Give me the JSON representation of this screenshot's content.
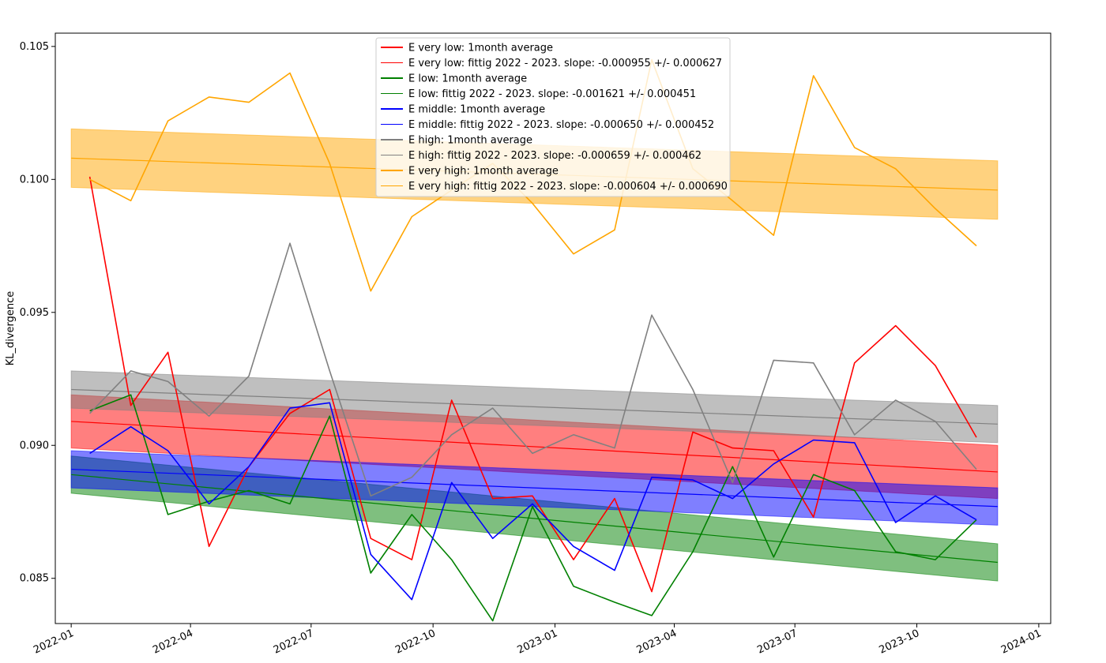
{
  "chart_data": {
    "type": "line",
    "title": "",
    "xlabel": "",
    "ylabel": "KL_divergence",
    "x_ticks": [
      "2022-01",
      "2022-04",
      "2022-07",
      "2022-10",
      "2023-01",
      "2023-04",
      "2023-07",
      "2023-10",
      "2024-01"
    ],
    "y_ticks": [
      "0.085",
      "0.090",
      "0.095",
      "0.100",
      "0.105"
    ],
    "ylim": [
      0.0833,
      0.1055
    ],
    "xlim": [
      "2021-12-20",
      "2024-01-10"
    ],
    "grid": false,
    "legend_position": "top-center",
    "x": [
      "2022-01-15",
      "2022-02-15",
      "2022-03-15",
      "2022-04-15",
      "2022-05-15",
      "2022-06-15",
      "2022-07-15",
      "2022-08-15",
      "2022-09-15",
      "2022-10-15",
      "2022-11-15",
      "2022-12-15",
      "2023-01-15",
      "2023-02-15",
      "2023-03-15",
      "2023-04-15",
      "2023-05-15",
      "2023-06-15",
      "2023-07-15",
      "2023-08-15",
      "2023-09-15",
      "2023-10-15",
      "2023-11-15"
    ],
    "series": [
      {
        "name": "E very low: 1month average",
        "color": "#ff0000",
        "values": [
          0.1001,
          0.0915,
          0.0935,
          0.0862,
          0.0892,
          0.0912,
          0.0921,
          0.0865,
          0.0857,
          0.0917,
          0.088,
          0.0881,
          0.0857,
          0.088,
          0.0845,
          0.0905,
          0.0899,
          0.0898,
          0.0873,
          0.0931,
          0.0945,
          0.093,
          0.0903
        ],
        "fit_name": "E very low: fittig 2022 - 2023. slope: -0.000955 +/- 0.000627",
        "fit": [
          0.0909,
          0.089
        ],
        "band_lower": [
          0.0899,
          0.088
        ],
        "band_upper": [
          0.0919,
          0.09
        ]
      },
      {
        "name": "E low: 1month average",
        "color": "#008000",
        "values": [
          0.0913,
          0.0919,
          0.0874,
          0.0879,
          0.0883,
          0.0878,
          0.0911,
          0.0852,
          0.0874,
          0.0857,
          0.0834,
          0.0877,
          0.0847,
          0.0841,
          0.0836,
          0.086,
          0.0892,
          0.0858,
          0.0889,
          0.0883,
          0.086,
          0.0857,
          0.0872
        ],
        "fit_name": "E low: fittig 2022 - 2023. slope: -0.001621 +/- 0.000451",
        "fit": [
          0.0889,
          0.0856
        ],
        "band_lower": [
          0.0882,
          0.0849
        ],
        "band_upper": [
          0.0896,
          0.0863
        ]
      },
      {
        "name": "E middle: 1month average",
        "color": "#0000ff",
        "values": [
          0.0897,
          0.0907,
          0.0898,
          0.0878,
          0.0892,
          0.0914,
          0.0916,
          0.0859,
          0.0842,
          0.0886,
          0.0865,
          0.0878,
          0.0862,
          0.0853,
          0.0888,
          0.0887,
          0.088,
          0.0893,
          0.0902,
          0.0901,
          0.0871,
          0.0881,
          0.0872
        ],
        "fit_name": "E middle: fittig 2022 - 2023. slope: -0.000650 +/- 0.000452",
        "fit": [
          0.0891,
          0.0877
        ],
        "band_lower": [
          0.0884,
          0.087
        ],
        "band_upper": [
          0.0898,
          0.0884
        ]
      },
      {
        "name": "E high: 1month average",
        "color": "#808080",
        "values": [
          0.0912,
          0.0928,
          0.0924,
          0.0911,
          0.0926,
          0.0976,
          0.0928,
          0.0881,
          0.0888,
          0.0904,
          0.0914,
          0.0897,
          0.0904,
          0.0899,
          0.0949,
          0.0921,
          0.0886,
          0.0932,
          0.0931,
          0.0904,
          0.0917,
          0.0909,
          0.0891
        ],
        "fit_name": "E high: fittig 2022 - 2023. slope: -0.000659 +/- 0.000462",
        "fit": [
          0.0921,
          0.0908
        ],
        "band_lower": [
          0.0914,
          0.0901
        ],
        "band_upper": [
          0.0928,
          0.0915
        ]
      },
      {
        "name": "E very high: 1month average",
        "color": "#ffa500",
        "values": [
          0.1,
          0.0992,
          0.1022,
          0.1031,
          0.1029,
          0.104,
          0.1006,
          0.0958,
          0.0986,
          0.0996,
          0.1006,
          0.0991,
          0.0972,
          0.0981,
          0.1045,
          0.1004,
          0.0992,
          0.0979,
          0.1039,
          0.1012,
          0.1004,
          0.0989,
          0.0975
        ],
        "fit_name": "E very high: fittig 2022 - 2023. slope: -0.000604 +/- 0.000690",
        "fit": [
          0.1008,
          0.0996
        ],
        "band_lower": [
          0.0997,
          0.0985
        ],
        "band_upper": [
          0.1019,
          0.1007
        ]
      }
    ]
  }
}
